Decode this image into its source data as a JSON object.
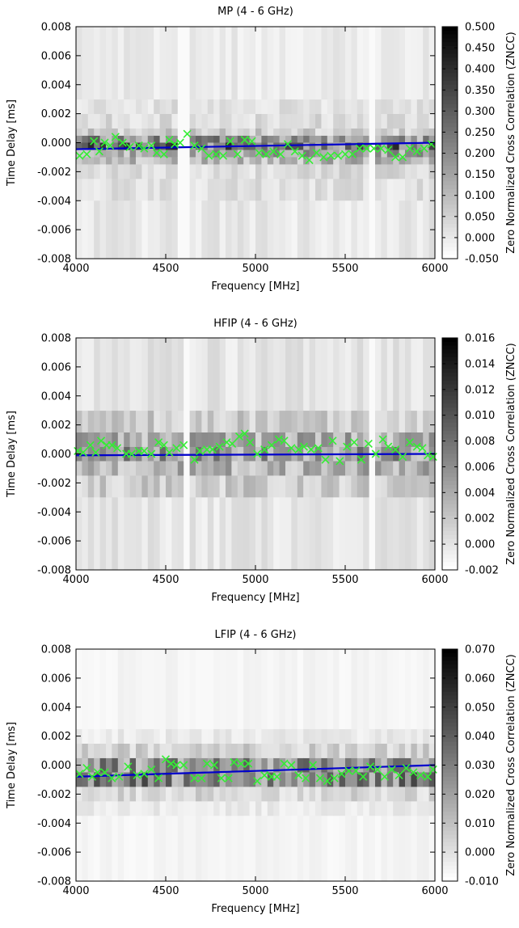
{
  "chart_data": [
    {
      "type": "heatmap",
      "title": "MP (4 - 6 GHz)",
      "xlabel": "Frequency [MHz]",
      "ylabel": "Time Delay [ms]",
      "colorbar_label": "Zero Normalized Cross Correlation (ZNCC)",
      "xlim": [
        4000,
        6000
      ],
      "ylim": [
        -0.008,
        0.008
      ],
      "xticks": [
        "4000",
        "4500",
        "5000",
        "5500",
        "6000"
      ],
      "yticks": [
        "-0.008",
        "-0.006",
        "-0.004",
        "-0.002",
        "0.000",
        "0.002",
        "0.004",
        "0.006",
        "0.008"
      ],
      "clim": [
        -0.05,
        0.5
      ],
      "cticks": [
        "-0.050",
        "0.000",
        "0.050",
        "0.100",
        "0.150",
        "0.200",
        "0.250",
        "0.300",
        "0.350",
        "0.400",
        "0.450",
        "0.500"
      ],
      "colormap": [
        "#ffffff",
        "#000000"
      ],
      "fit_line": {
        "color": "#0000cc",
        "x": [
          4000,
          6000
        ],
        "y": [
          -0.00045,
          0.0
        ]
      },
      "peak_marker": {
        "symbol": "x",
        "color": "#33ee33"
      },
      "peaks": {
        "x": [
          4020,
          4060,
          4100,
          4130,
          4160,
          4190,
          4220,
          4260,
          4300,
          4350,
          4380,
          4420,
          4450,
          4490,
          4520,
          4550,
          4580,
          4620,
          4660,
          4700,
          4740,
          4780,
          4820,
          4860,
          4900,
          4940,
          4980,
          5020,
          5060,
          5100,
          5140,
          5180,
          5220,
          5260,
          5300,
          5340,
          5380,
          5420,
          5460,
          5500,
          5540,
          5580,
          5620,
          5660,
          5700,
          5740,
          5780,
          5820,
          5860,
          5900,
          5940,
          5980
        ],
        "y": [
          -0.0009,
          -0.0008,
          0.0001,
          -0.0006,
          0.0,
          -0.0002,
          0.0004,
          0.0,
          -0.0003,
          -0.0002,
          -0.0004,
          -0.0002,
          -0.0007,
          -0.0008,
          0.0002,
          -0.0001,
          0.0,
          0.0006,
          -0.0002,
          -0.0004,
          -0.0009,
          -0.0008,
          -0.0009,
          0.0001,
          -0.0008,
          0.0002,
          0.0001,
          -0.0007,
          -0.0008,
          -0.0006,
          -0.0008,
          -0.0001,
          -0.0006,
          -0.0009,
          -0.0012,
          -0.0007,
          -0.001,
          -0.0009,
          -0.0009,
          -0.0008,
          -0.0008,
          -0.0004,
          -0.0004,
          -0.0004,
          -0.0004,
          -0.0005,
          -0.001,
          -0.001,
          -0.0004,
          -0.0006,
          -0.0004,
          -0.0001
        ]
      },
      "heat_rows": [
        {
          "y": [
            0.0,
            0.0005
          ],
          "intensity": 0.42
        },
        {
          "y": [
            -0.0005,
            0.0
          ],
          "intensity": 0.55
        },
        {
          "y": [
            -0.001,
            -0.0005
          ],
          "intensity": 0.35
        },
        {
          "y": [
            -0.0015,
            -0.001
          ],
          "intensity": 0.28
        },
        {
          "y": [
            0.0005,
            0.001
          ],
          "intensity": 0.2
        },
        {
          "y": [
            0.001,
            0.002
          ],
          "intensity": 0.14
        },
        {
          "y": [
            0.002,
            0.003
          ],
          "intensity": 0.12
        },
        {
          "y": [
            0.003,
            0.008
          ],
          "intensity": 0.08
        },
        {
          "y": [
            -0.0025,
            -0.0015
          ],
          "intensity": 0.14
        },
        {
          "y": [
            -0.004,
            -0.0025
          ],
          "intensity": 0.12
        },
        {
          "y": [
            -0.008,
            -0.004
          ],
          "intensity": 0.09
        }
      ],
      "gaps_mhz": [
        4600,
        5650
      ]
    },
    {
      "type": "heatmap",
      "title": "HFIP (4 - 6 GHz)",
      "xlabel": "Frequency [MHz]",
      "ylabel": "Time Delay [ms]",
      "colorbar_label": "Zero Normalized Cross Correlation (ZNCC)",
      "xlim": [
        4000,
        6000
      ],
      "ylim": [
        -0.008,
        0.008
      ],
      "xticks": [
        "4000",
        "4500",
        "5000",
        "5500",
        "6000"
      ],
      "yticks": [
        "-0.008",
        "-0.006",
        "-0.004",
        "-0.002",
        "0.000",
        "0.002",
        "0.004",
        "0.006",
        "0.008"
      ],
      "clim": [
        -0.002,
        0.016
      ],
      "cticks": [
        "-0.002",
        "0.000",
        "0.002",
        "0.004",
        "0.006",
        "0.008",
        "0.010",
        "0.012",
        "0.014",
        "0.016"
      ],
      "colormap": [
        "#ffffff",
        "#000000"
      ],
      "fit_line": {
        "color": "#0000cc",
        "x": [
          4000,
          6000
        ],
        "y": [
          -0.0001,
          0.0
        ]
      },
      "peak_marker": {
        "symbol": "x",
        "color": "#33ee33"
      },
      "peaks": {
        "x": [
          4010,
          4040,
          4080,
          4110,
          4140,
          4170,
          4200,
          4230,
          4280,
          4310,
          4350,
          4380,
          4420,
          4460,
          4490,
          4520,
          4560,
          4600,
          4660,
          4690,
          4730,
          4760,
          4800,
          4840,
          4870,
          4910,
          4940,
          4970,
          5010,
          5050,
          5090,
          5130,
          5160,
          5200,
          5240,
          5270,
          5310,
          5350,
          5390,
          5430,
          5470,
          5510,
          5550,
          5590,
          5630,
          5670,
          5710,
          5740,
          5780,
          5820,
          5860,
          5900,
          5930,
          5960,
          5990
        ],
        "y": [
          0.0002,
          0.0001,
          0.0006,
          0.0001,
          0.0009,
          0.0006,
          0.0006,
          0.0004,
          0.0,
          0.0,
          0.0002,
          0.0002,
          0.0,
          0.0008,
          0.0006,
          0.0001,
          0.0004,
          0.0006,
          -0.0004,
          0.0002,
          0.0003,
          0.0003,
          0.0005,
          0.0008,
          0.0007,
          0.0012,
          0.0014,
          0.0008,
          0.0,
          0.0003,
          0.0006,
          0.001,
          0.0009,
          0.0004,
          0.0003,
          0.0005,
          0.0003,
          0.0004,
          -0.0004,
          0.0009,
          -0.0005,
          0.0005,
          0.0008,
          -0.0004,
          0.0007,
          0.0,
          0.001,
          0.0005,
          0.0003,
          -0.0002,
          0.0008,
          0.0005,
          0.0004,
          -0.0001,
          -0.0002
        ]
      },
      "heat_rows": [
        {
          "y": [
            -0.0005,
            0.0005
          ],
          "intensity": 0.4
        },
        {
          "y": [
            0.0005,
            0.0015
          ],
          "intensity": 0.32
        },
        {
          "y": [
            -0.0015,
            -0.0005
          ],
          "intensity": 0.3
        },
        {
          "y": [
            0.0015,
            0.003
          ],
          "intensity": 0.2
        },
        {
          "y": [
            -0.003,
            -0.0015
          ],
          "intensity": 0.2
        },
        {
          "y": [
            0.003,
            0.008
          ],
          "intensity": 0.1
        },
        {
          "y": [
            -0.008,
            -0.003
          ],
          "intensity": 0.1
        }
      ],
      "gaps_mhz": [
        4630,
        5640
      ]
    },
    {
      "type": "heatmap",
      "title": "LFIP (4 - 6 GHz)",
      "xlabel": "Frequency [MHz]",
      "ylabel": "Time Delay [ms]",
      "colorbar_label": "Zero Normalized Cross Correlation (ZNCC)",
      "xlim": [
        4000,
        6000
      ],
      "ylim": [
        -0.008,
        0.008
      ],
      "xticks": [
        "4000",
        "4500",
        "5000",
        "5500",
        "6000"
      ],
      "yticks": [
        "-0.008",
        "-0.006",
        "-0.004",
        "-0.002",
        "0.000",
        "0.002",
        "0.004",
        "0.006",
        "0.008"
      ],
      "clim": [
        -0.01,
        0.07
      ],
      "cticks": [
        "-0.010",
        "0.000",
        "0.010",
        "0.020",
        "0.030",
        "0.040",
        "0.050",
        "0.060",
        "0.070"
      ],
      "colormap": [
        "#ffffff",
        "#000000"
      ],
      "fit_line": {
        "color": "#0000cc",
        "x": [
          4000,
          6000
        ],
        "y": [
          -0.0008,
          0.0
        ]
      },
      "peak_marker": {
        "symbol": "x",
        "color": "#33ee33"
      },
      "peaks": {
        "x": [
          4020,
          4060,
          4090,
          4120,
          4160,
          4200,
          4240,
          4290,
          4340,
          4380,
          4420,
          4460,
          4500,
          4530,
          4560,
          4600,
          4660,
          4700,
          4730,
          4770,
          4810,
          4850,
          4880,
          4920,
          4960,
          5010,
          5050,
          5090,
          5120,
          5160,
          5200,
          5240,
          5280,
          5320,
          5360,
          5400,
          5440,
          5480,
          5520,
          5560,
          5600,
          5640,
          5680,
          5720,
          5760,
          5800,
          5840,
          5880,
          5920,
          5960,
          5990
        ],
        "y": [
          -0.0006,
          -0.0002,
          -0.0008,
          -0.0005,
          -0.0005,
          -0.0009,
          -0.0008,
          -0.0001,
          -0.0007,
          -0.0006,
          -0.0003,
          -0.0009,
          0.0004,
          0.0001,
          0.0,
          0.0,
          -0.0009,
          -0.0009,
          0.0001,
          0.0,
          -0.0009,
          -0.0009,
          0.0002,
          0.0001,
          0.0001,
          -0.0011,
          -0.0007,
          -0.0008,
          -0.0008,
          0.0001,
          0.0,
          -0.0007,
          -0.0009,
          0.0,
          -0.0009,
          -0.0011,
          -0.0009,
          -0.0006,
          -0.0004,
          -0.0004,
          -0.0008,
          -0.0001,
          -0.0003,
          -0.0008,
          -0.0003,
          -0.0007,
          -0.0002,
          -0.0005,
          -0.0007,
          -0.0008,
          -0.0003
        ]
      },
      "heat_rows": [
        {
          "y": [
            -0.0005,
            0.0005
          ],
          "intensity": 0.42
        },
        {
          "y": [
            -0.0015,
            -0.0005
          ],
          "intensity": 0.5
        },
        {
          "y": [
            0.0005,
            0.0015
          ],
          "intensity": 0.18
        },
        {
          "y": [
            -0.0025,
            -0.0015
          ],
          "intensity": 0.16
        },
        {
          "y": [
            0.0015,
            0.0025
          ],
          "intensity": 0.08
        },
        {
          "y": [
            -0.0035,
            -0.0025
          ],
          "intensity": 0.08
        },
        {
          "y": [
            0.0025,
            0.008
          ],
          "intensity": 0.04
        },
        {
          "y": [
            -0.008,
            -0.0035
          ],
          "intensity": 0.04
        }
      ],
      "gaps_mhz": []
    }
  ]
}
